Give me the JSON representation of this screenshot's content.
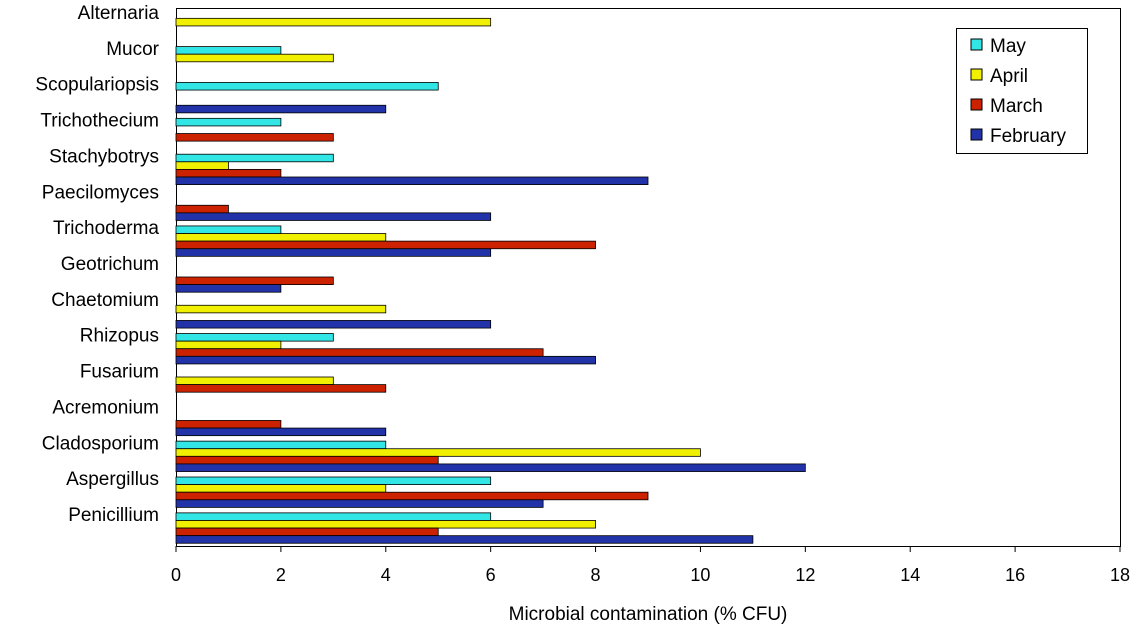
{
  "chart_data": {
    "type": "bar",
    "orientation": "horizontal",
    "title": "",
    "xlabel": "Microbial contamination (% CFU)",
    "ylabel": "",
    "xlim": [
      0,
      18
    ],
    "xticks": [
      "0",
      "2",
      "4",
      "6",
      "8",
      "10",
      "12",
      "14",
      "16",
      "18"
    ],
    "grid": false,
    "legend_position": "top-right",
    "categories": [
      "Alternaria",
      "Mucor",
      "Scopulariopsis",
      "Trichothecium",
      "Stachybotrys",
      "Paecilomyces",
      "Trichoderma",
      "Geotrichum",
      "Chaetomium",
      "Rhizopus",
      "Fusarium",
      "Acremonium",
      "Cladosporium",
      "Aspergillus",
      "Penicillium"
    ],
    "series": [
      {
        "name": "May",
        "color": "#33e6e6",
        "values": [
          0,
          2,
          5,
          2,
          3,
          0,
          2,
          0,
          0,
          3,
          0,
          0,
          4,
          6,
          6
        ]
      },
      {
        "name": "April",
        "color": "#f0f000",
        "values": [
          6,
          3,
          0,
          0,
          1,
          0,
          4,
          0,
          4,
          2,
          3,
          0,
          10,
          4,
          8
        ]
      },
      {
        "name": "March",
        "color": "#cc2200",
        "values": [
          0,
          0,
          0,
          3,
          2,
          1,
          8,
          3,
          0,
          7,
          4,
          2,
          5,
          9,
          5
        ]
      },
      {
        "name": "February",
        "color": "#2233aa",
        "values": [
          0,
          0,
          4,
          0,
          9,
          6,
          6,
          2,
          6,
          8,
          0,
          4,
          12,
          7,
          11
        ]
      }
    ]
  }
}
